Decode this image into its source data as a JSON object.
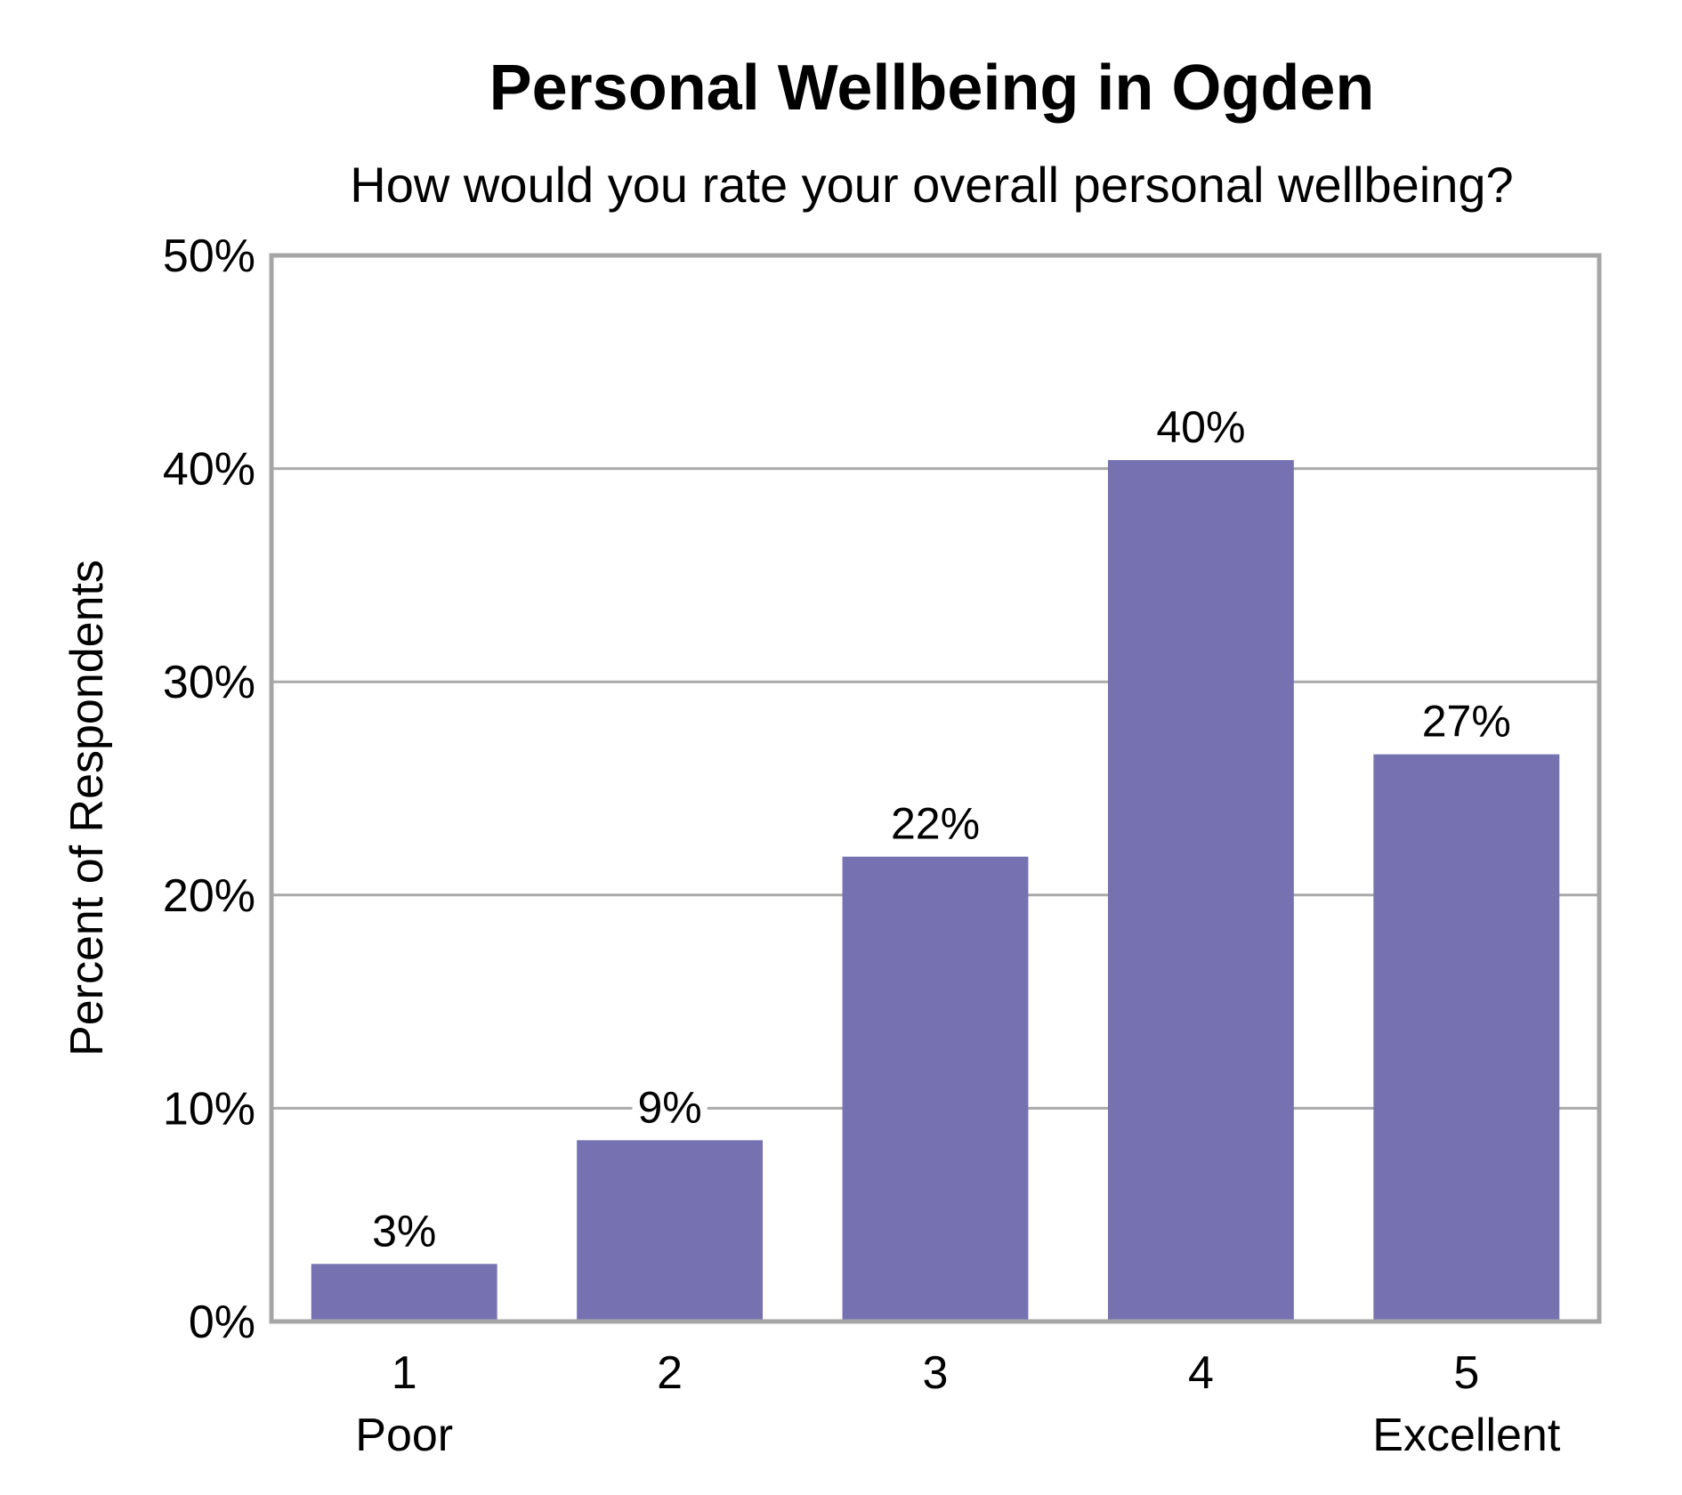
{
  "chart_data": {
    "type": "bar",
    "title": "Personal Wellbeing in Ogden",
    "subtitle": "How would you rate your overall personal wellbeing?",
    "ylabel": "Percent of Respondents",
    "xlabel": "",
    "ylim": [
      0,
      50
    ],
    "y_ticks": [
      "0%",
      "10%",
      "20%",
      "30%",
      "40%",
      "50%"
    ],
    "y_tick_values": [
      0,
      10,
      20,
      30,
      40,
      50
    ],
    "categories": [
      "1",
      "2",
      "3",
      "4",
      "5"
    ],
    "category_sublabels": [
      "Poor",
      "",
      "",
      "",
      "Excellent"
    ],
    "values": [
      2.7,
      8.5,
      21.8,
      40.4,
      26.6
    ],
    "data_labels": [
      "3%",
      "9%",
      "22%",
      "40%",
      "27%"
    ],
    "grid": true,
    "colors": {
      "bar": "#7672b1",
      "grid": "#aaaaaa",
      "frame": "#a6a6a6"
    }
  }
}
